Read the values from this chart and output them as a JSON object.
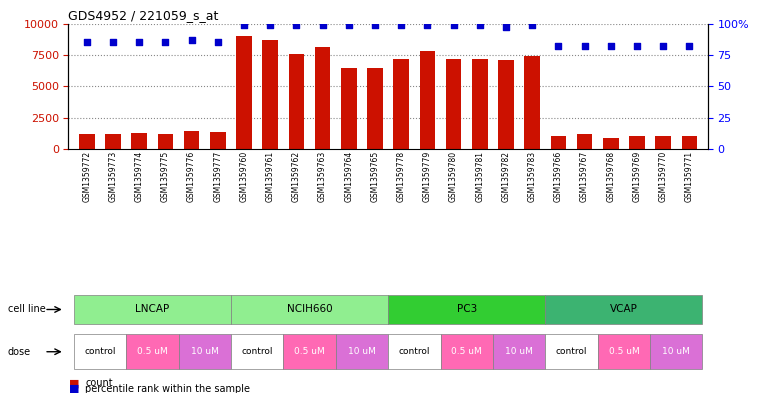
{
  "title": "GDS4952 / 221059_s_at",
  "samples": [
    "GSM1359772",
    "GSM1359773",
    "GSM1359774",
    "GSM1359775",
    "GSM1359776",
    "GSM1359777",
    "GSM1359760",
    "GSM1359761",
    "GSM1359762",
    "GSM1359763",
    "GSM1359764",
    "GSM1359765",
    "GSM1359778",
    "GSM1359779",
    "GSM1359780",
    "GSM1359781",
    "GSM1359782",
    "GSM1359783",
    "GSM1359766",
    "GSM1359767",
    "GSM1359768",
    "GSM1359769",
    "GSM1359770",
    "GSM1359771"
  ],
  "counts": [
    1200,
    1200,
    1300,
    1200,
    1450,
    1400,
    9000,
    8700,
    7600,
    8100,
    6500,
    6500,
    7200,
    7800,
    7200,
    7200,
    7100,
    7400,
    1100,
    1200,
    900,
    1050,
    1100,
    1100
  ],
  "percentiles": [
    85,
    85,
    85,
    85,
    87,
    85,
    99,
    99,
    99,
    99,
    99,
    99,
    99,
    99,
    99,
    99,
    97,
    99,
    82,
    82,
    82,
    82,
    82,
    82
  ],
  "cell_lines": [
    {
      "label": "LNCAP",
      "start": 0,
      "end": 6,
      "color": "#90EE90"
    },
    {
      "label": "NCIH660",
      "start": 6,
      "end": 12,
      "color": "#98FB98"
    },
    {
      "label": "PC3",
      "start": 12,
      "end": 18,
      "color": "#32CD32"
    },
    {
      "label": "VCAP",
      "start": 18,
      "end": 24,
      "color": "#3CB371"
    }
  ],
  "doses": [
    {
      "label": "control",
      "start": 0,
      "end": 2,
      "color": "white"
    },
    {
      "label": "0.5 uM",
      "start": 2,
      "end": 4,
      "color": "#FF69B4"
    },
    {
      "label": "10 uM",
      "start": 4,
      "end": 6,
      "color": "#FF69B4"
    },
    {
      "label": "control",
      "start": 6,
      "end": 8,
      "color": "white"
    },
    {
      "label": "0.5 uM",
      "start": 8,
      "end": 10,
      "color": "#FF69B4"
    },
    {
      "label": "10 uM",
      "start": 10,
      "end": 12,
      "color": "#FF69B4"
    },
    {
      "label": "control",
      "start": 12,
      "end": 14,
      "color": "white"
    },
    {
      "label": "0.5 uM",
      "start": 14,
      "end": 16,
      "color": "#FF69B4"
    },
    {
      "label": "10 uM",
      "start": 16,
      "end": 18,
      "color": "#FF69B4"
    },
    {
      "label": "control",
      "start": 18,
      "end": 20,
      "color": "white"
    },
    {
      "label": "0.5 uM",
      "start": 20,
      "end": 22,
      "color": "#FF69B4"
    },
    {
      "label": "10 uM",
      "start": 22,
      "end": 24,
      "color": "#FF69B4"
    }
  ],
  "bar_color": "#CC1100",
  "dot_color": "#0000CC",
  "ylim_left": [
    0,
    10000
  ],
  "ylim_right": [
    0,
    100
  ],
  "yticks_left": [
    0,
    2500,
    5000,
    7500,
    10000
  ],
  "yticks_right": [
    0,
    25,
    50,
    75,
    100
  ],
  "background_color": "#ffffff",
  "grid_color": "#888888"
}
